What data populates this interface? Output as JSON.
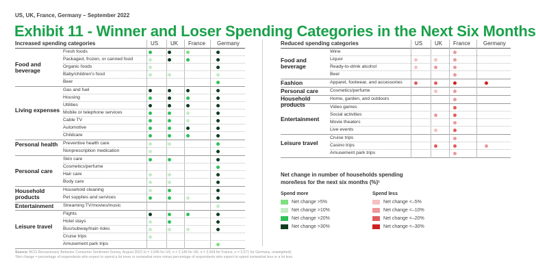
{
  "header": {
    "kicker": "US, UK, France, Germany – September 2022",
    "title": "Exhibit 11 - Winner and Loser Spending Categories in the Next Six Months"
  },
  "colors": {
    "more": [
      "#7fe07f",
      "#c4ecc6",
      "#2cc05a",
      "#0e3b1e"
    ],
    "less": [
      "#f5c0c0",
      "#ee9898",
      "#e05c5c",
      "#cc2222"
    ]
  },
  "chart_data": [
    {
      "type": "table",
      "title": "Increased spending categories",
      "columns": [
        "US",
        "UK",
        "France",
        "Germany"
      ],
      "legend_levels": {
        "1": "Net change >5%",
        "2": "Net change >10%",
        "3": "Net change >20%",
        "4": "Net change >30%"
      },
      "groups": [
        {
          "name": "Food and beverage",
          "rows": [
            {
              "label": "Fresh foods",
              "values": [
                3,
                4,
                1,
                4
              ]
            },
            {
              "label": "Packaged, frozen, or canned food",
              "values": [
                2,
                4,
                3,
                4
              ]
            },
            {
              "label": "Organic foods",
              "values": [
                2,
                0,
                0,
                4
              ]
            },
            {
              "label": "Baby/children's food",
              "values": [
                2,
                2,
                0,
                2
              ]
            },
            {
              "label": "Beer",
              "values": [
                0,
                0,
                0,
                3
              ]
            }
          ]
        },
        {
          "name": "Living expenses",
          "rows": [
            {
              "label": "Gas and fuel",
              "values": [
                4,
                4,
                4,
                4
              ]
            },
            {
              "label": "Housing",
              "values": [
                3,
                4,
                3,
                4
              ]
            },
            {
              "label": "Utilities",
              "values": [
                4,
                4,
                4,
                4
              ]
            },
            {
              "label": "Mobile or telephone services",
              "values": [
                3,
                3,
                2,
                4
              ]
            },
            {
              "label": "Cable TV",
              "values": [
                3,
                3,
                2,
                4
              ]
            },
            {
              "label": "Automotive",
              "values": [
                3,
                3,
                4,
                4
              ]
            },
            {
              "label": "Childcare",
              "values": [
                3,
                3,
                3,
                4
              ]
            }
          ]
        },
        {
          "name": "Personal health",
          "rows": [
            {
              "label": "Preventive health care",
              "values": [
                2,
                2,
                0,
                3
              ]
            },
            {
              "label": "Nonprescription medication",
              "values": [
                2,
                0,
                0,
                4
              ]
            }
          ]
        },
        {
          "name": "Personal care",
          "rows": [
            {
              "label": "Skin care",
              "values": [
                3,
                3,
                0,
                4
              ]
            },
            {
              "label": "Cosmetics/perfume",
              "values": [
                0,
                0,
                0,
                3
              ]
            },
            {
              "label": "Hair care",
              "values": [
                2,
                2,
                0,
                4
              ]
            },
            {
              "label": "Body care",
              "values": [
                2,
                2,
                0,
                4
              ]
            }
          ]
        },
        {
          "name": "Household products",
          "rows": [
            {
              "label": "Household cleaning",
              "values": [
                2,
                3,
                0,
                4
              ]
            },
            {
              "label": "Pet supplies and services",
              "values": [
                3,
                3,
                2,
                4
              ]
            }
          ]
        },
        {
          "name": "Entertainment",
          "rows": [
            {
              "label": "Streaming TV/movies/music",
              "values": [
                0,
                0,
                0,
                2
              ]
            }
          ]
        },
        {
          "name": "Leisure travel",
          "rows": [
            {
              "label": "Flights",
              "values": [
                4,
                3,
                3,
                4
              ]
            },
            {
              "label": "Hotel stays",
              "values": [
                2,
                3,
                0,
                4
              ]
            },
            {
              "label": "Bus/subway/train rides",
              "values": [
                2,
                2,
                2,
                4
              ]
            },
            {
              "label": "Cruise trips",
              "values": [
                2,
                0,
                0,
                0
              ]
            },
            {
              "label": "Amusement park trips",
              "values": [
                0,
                0,
                0,
                1
              ]
            }
          ]
        }
      ]
    },
    {
      "type": "table",
      "title": "Reduced spending categories",
      "columns": [
        "US",
        "UK",
        "France",
        "Germany"
      ],
      "legend_levels": {
        "1": "Net change <–5%",
        "2": "Net change <–10%",
        "3": "Net change <–20%",
        "4": "Net change <–30%"
      },
      "groups": [
        {
          "name": "Food and beverage",
          "rows": [
            {
              "label": "Wine",
              "values": [
                0,
                0,
                2,
                0
              ]
            },
            {
              "label": "Liquor",
              "values": [
                1,
                1,
                2,
                0
              ]
            },
            {
              "label": "Ready-to-drink alcohol",
              "values": [
                1,
                2,
                2,
                0
              ]
            },
            {
              "label": "Beer",
              "values": [
                0,
                0,
                2,
                0
              ]
            }
          ]
        },
        {
          "name": "Fashion",
          "rows": [
            {
              "label": "Apparel, footwear, and accessories",
              "values": [
                3,
                3,
                4,
                4
              ]
            }
          ]
        },
        {
          "name": "Personal care",
          "rows": [
            {
              "label": "Cosmetics/perfume",
              "values": [
                0,
                1,
                2,
                0
              ]
            }
          ]
        },
        {
          "name": "Household products",
          "rows": [
            {
              "label": "Home, garden, and outdoors",
              "values": [
                0,
                0,
                2,
                0
              ]
            }
          ]
        },
        {
          "name": "Entertainment",
          "rows": [
            {
              "label": "Video games",
              "values": [
                0,
                0,
                3,
                0
              ]
            },
            {
              "label": "Social activities",
              "values": [
                0,
                2,
                3,
                0
              ]
            },
            {
              "label": "Movie theaters",
              "values": [
                0,
                0,
                2,
                0
              ]
            },
            {
              "label": "Live events",
              "values": [
                0,
                1,
                3,
                0
              ]
            }
          ]
        },
        {
          "name": "Leisure travel",
          "rows": [
            {
              "label": "Cruise trips",
              "values": [
                0,
                0,
                2,
                0
              ]
            },
            {
              "label": "Casino trips",
              "values": [
                0,
                3,
                3,
                2
              ]
            },
            {
              "label": "Amusement park trips",
              "values": [
                0,
                0,
                2,
                0
              ]
            }
          ]
        }
      ]
    }
  ],
  "legend": {
    "title": "Net change in number of households spending more/less for the next six months (%)¹",
    "more_title": "Spend more",
    "less_title": "Spend less",
    "more": [
      "Net change >5%",
      "Net change >10%",
      "Net change >20%",
      "Net change >30%"
    ],
    "less": [
      "Net change <–5%",
      "Net change <–10%",
      "Net change <–20%",
      "Net change <–30%"
    ]
  },
  "footer": {
    "source_label": "Source:",
    "source": "BCG Recessionary Behavior Consumer Sentiment Survey, August 2022 (n = 2,045 for US, n = 2,146 for UK, n = 2,504 for France, n = 2,571 for Germany, unweighted).",
    "note": "¹Net change = percentage of respondents who expect to spend a lot more or somewhat more minus percentage of respondents who expect to spend somewhat less or a lot less."
  }
}
